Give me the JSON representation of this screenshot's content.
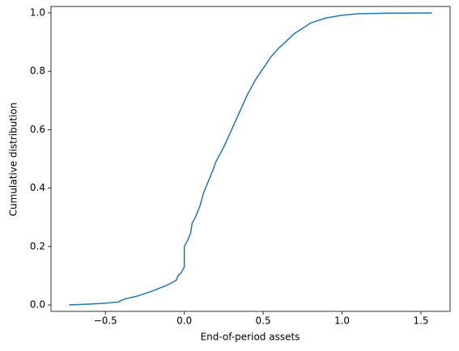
{
  "chart_data": {
    "type": "line",
    "x_label": "End-of-period assets",
    "y_label": "Cumulative distribution",
    "x": [
      -0.73,
      -0.6,
      -0.5,
      -0.42,
      -0.38,
      -0.3,
      -0.2,
      -0.1,
      -0.05,
      -0.04,
      -0.02,
      0.0,
      0.0,
      0.02,
      0.04,
      0.05,
      0.07,
      0.1,
      0.12,
      0.15,
      0.18,
      0.2,
      0.25,
      0.3,
      0.35,
      0.4,
      0.45,
      0.5,
      0.55,
      0.6,
      0.7,
      0.8,
      0.9,
      1.0,
      1.1,
      1.3,
      1.57
    ],
    "series": [
      {
        "color": "#1f77b4",
        "values": [
          0.0,
          0.003,
          0.006,
          0.01,
          0.02,
          0.03,
          0.048,
          0.07,
          0.085,
          0.1,
          0.11,
          0.13,
          0.2,
          0.22,
          0.245,
          0.28,
          0.3,
          0.34,
          0.38,
          0.42,
          0.46,
          0.49,
          0.54,
          0.6,
          0.66,
          0.72,
          0.77,
          0.81,
          0.85,
          0.88,
          0.93,
          0.965,
          0.983,
          0.992,
          0.997,
          0.999,
          1.0
        ]
      }
    ],
    "xlim": [
      -0.845,
      1.685
    ],
    "ylim": [
      -0.022,
      1.022
    ],
    "xticks": [
      {
        "value": -0.5,
        "label": "−0.5"
      },
      {
        "value": 0,
        "label": "0.0"
      },
      0.5,
      {
        "value": 1,
        "label": "1.0"
      },
      1.5
    ],
    "yticks": [
      {
        "value": 0,
        "label": "0.0"
      },
      0.2,
      0.4,
      0.6,
      0.8,
      {
        "value": 1,
        "label": "1.0"
      }
    ],
    "grid": false
  }
}
